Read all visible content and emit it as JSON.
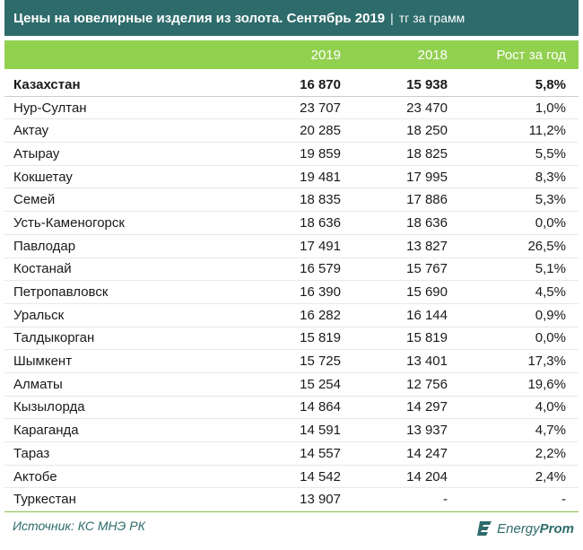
{
  "chart_data": {
    "type": "table",
    "title": "Цены на ювелирные изделия из золота. Сентябрь 2019",
    "unit": "тг за грамм",
    "columns": [
      "",
      "2019",
      "2018",
      "Рост за год"
    ],
    "rows": [
      {
        "city": "Казахстан",
        "v2019": "16 870",
        "v2018": "15 938",
        "growth": "5,8%",
        "total": true
      },
      {
        "city": "Нур-Султан",
        "v2019": "23 707",
        "v2018": "23 470",
        "growth": "1,0%"
      },
      {
        "city": "Актау",
        "v2019": "20 285",
        "v2018": "18 250",
        "growth": "11,2%"
      },
      {
        "city": "Атырау",
        "v2019": "19 859",
        "v2018": "18 825",
        "growth": "5,5%"
      },
      {
        "city": "Кокшетау",
        "v2019": "19 481",
        "v2018": "17 995",
        "growth": "8,3%"
      },
      {
        "city": "Семей",
        "v2019": "18 835",
        "v2018": "17 886",
        "growth": "5,3%"
      },
      {
        "city": "Усть-Каменогорск",
        "v2019": "18 636",
        "v2018": "18 636",
        "growth": "0,0%"
      },
      {
        "city": "Павлодар",
        "v2019": "17 491",
        "v2018": "13 827",
        "growth": "26,5%"
      },
      {
        "city": "Костанай",
        "v2019": "16 579",
        "v2018": "15 767",
        "growth": "5,1%"
      },
      {
        "city": "Петропавловск",
        "v2019": "16 390",
        "v2018": "15 690",
        "growth": "4,5%"
      },
      {
        "city": "Уральск",
        "v2019": "16 282",
        "v2018": "16 144",
        "growth": "0,9%"
      },
      {
        "city": "Талдыкорган",
        "v2019": "15 819",
        "v2018": "15 819",
        "growth": "0,0%"
      },
      {
        "city": "Шымкент",
        "v2019": "15 725",
        "v2018": "13 401",
        "growth": "17,3%"
      },
      {
        "city": "Алматы",
        "v2019": "15 254",
        "v2018": "12 756",
        "growth": "19,6%"
      },
      {
        "city": "Кызылорда",
        "v2019": "14 864",
        "v2018": "14 297",
        "growth": "4,0%"
      },
      {
        "city": "Караганда",
        "v2019": "14 591",
        "v2018": "13 937",
        "growth": "4,7%"
      },
      {
        "city": "Тараз",
        "v2019": "14 557",
        "v2018": "14 247",
        "growth": "2,2%"
      },
      {
        "city": "Актобе",
        "v2019": "14 542",
        "v2018": "14 204",
        "growth": "2,4%"
      },
      {
        "city": "Туркестан",
        "v2019": "13 907",
        "v2018": "-",
        "growth": "-"
      }
    ]
  },
  "source": "Источник: КС МНЭ РК",
  "logo": {
    "part1": "Energy",
    "part2": "Prom"
  },
  "colors": {
    "title_bg": "#2e6b6b",
    "header_bg": "#92d050",
    "text": "#1a1a1a"
  }
}
